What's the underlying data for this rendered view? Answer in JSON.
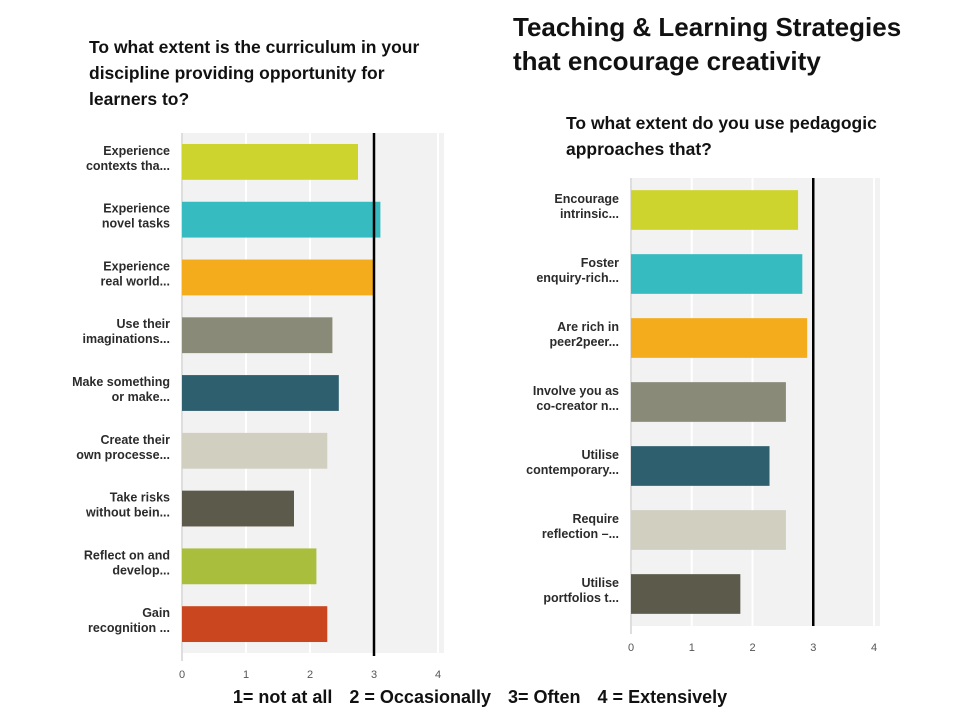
{
  "title": "Teaching & Learning Strategies that encourage creativity",
  "legend": {
    "items": [
      "1= not at all",
      "2 = Occasionally",
      "3= Often",
      "4 = Extensively"
    ]
  },
  "chart_data": [
    {
      "type": "bar",
      "orientation": "horizontal",
      "title": "To what extent is the curriculum in your discipline providing opportunity for learners to?",
      "categories": [
        [
          "Experience",
          "contexts tha..."
        ],
        [
          "Experience",
          "novel tasks"
        ],
        [
          "Experience",
          "real world..."
        ],
        [
          "Use their",
          "imaginations..."
        ],
        [
          "Make something",
          "or make..."
        ],
        [
          "Create their",
          "own processe..."
        ],
        [
          "Take risks",
          "without bein..."
        ],
        [
          "Reflect on and",
          "develop..."
        ],
        [
          "Gain",
          "recognition ..."
        ]
      ],
      "values": [
        2.75,
        3.1,
        3.0,
        2.35,
        2.45,
        2.27,
        1.75,
        2.1,
        2.27
      ],
      "colors": [
        "#cdd42e",
        "#36bcc0",
        "#f4ac1c",
        "#8a8a78",
        "#2e5f6e",
        "#d1cfc0",
        "#5c5a4a",
        "#a9be3c",
        "#c9461e"
      ],
      "xlim": [
        0,
        4
      ],
      "xticks": [
        "0",
        "1",
        "2",
        "3",
        "4"
      ],
      "reference_line": 3,
      "grid": true
    },
    {
      "type": "bar",
      "orientation": "horizontal",
      "title": "To what extent do you use pedagogic approaches that?",
      "categories": [
        [
          "Encourage",
          "intrinsic..."
        ],
        [
          "Foster",
          "enquiry-rich..."
        ],
        [
          "Are rich in",
          "peer2peer..."
        ],
        [
          "Involve you as",
          "co-creator n..."
        ],
        [
          "Utilise",
          "contemporary..."
        ],
        [
          "Require",
          "reflection –..."
        ],
        [
          "Utilise",
          "portfolios t..."
        ]
      ],
      "values": [
        2.75,
        2.82,
        2.9,
        2.55,
        2.28,
        2.55,
        1.8
      ],
      "colors": [
        "#cdd42e",
        "#36bcc0",
        "#f4ac1c",
        "#8a8a78",
        "#2e5f6e",
        "#d1cfc0",
        "#5c5a4a"
      ],
      "xlim": [
        0,
        4
      ],
      "xticks": [
        "0",
        "1",
        "2",
        "3",
        "4"
      ],
      "reference_line": 3,
      "grid": true
    }
  ]
}
